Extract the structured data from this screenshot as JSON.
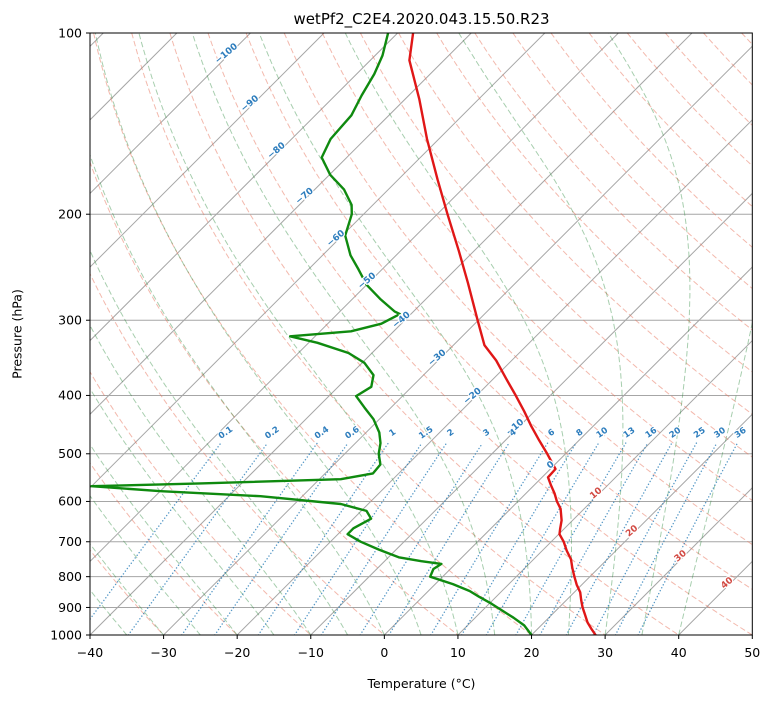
{
  "title": "wetPf2_C2E4.2020.043.15.50.R23",
  "axes": {
    "xlabel": "Temperature (°C)",
    "ylabel": "Pressure (hPa)",
    "x_ticks": [
      -40,
      -30,
      -20,
      -10,
      0,
      10,
      20,
      30,
      40,
      50
    ],
    "y_ticks": [
      100,
      200,
      300,
      400,
      500,
      600,
      700,
      800,
      900,
      1000
    ]
  },
  "colors": {
    "grid": "#a6a6a6",
    "frame": "#000000",
    "dry_adiabat": "#e8735b",
    "moist_adiabat": "#2e8b3d",
    "mixing_line": "#1f77b4",
    "isotherm_label_cold": "#2d7dbd",
    "isotherm_label_warm": "#d24a43",
    "mixing_label": "#2d7dbd",
    "temperature": "#e01717",
    "dewpoint": "#0f8a0f"
  },
  "chart_data": {
    "type": "line",
    "subtype": "skew-t-log-p",
    "title": "wetPf2_C2E4.2020.043.15.50.R23",
    "xlabel": "Temperature (°C)",
    "ylabel": "Pressure (hPa)",
    "x_range_c": [
      -40,
      50
    ],
    "pressure_range_hpa": [
      100,
      1000
    ],
    "y_scale": "log",
    "skew": "isotherms at 45 degrees",
    "x_ticks": [
      -40,
      -30,
      -20,
      -10,
      0,
      10,
      20,
      30,
      40,
      50
    ],
    "y_ticks": [
      100,
      200,
      300,
      400,
      500,
      600,
      700,
      800,
      900,
      1000
    ],
    "series": [
      {
        "name": "temperature",
        "color": "#e01717",
        "points_p_t": [
          [
            100,
            -77.9
          ],
          [
            111,
            -74.7
          ],
          [
            129,
            -68.0
          ],
          [
            150,
            -61.6
          ],
          [
            175,
            -54.7
          ],
          [
            200,
            -48.6
          ],
          [
            230,
            -42.1
          ],
          [
            260,
            -36.5
          ],
          [
            300,
            -30.1
          ],
          [
            330,
            -25.8
          ],
          [
            350,
            -22.1
          ],
          [
            375,
            -18.3
          ],
          [
            400,
            -14.7
          ],
          [
            425,
            -11.4
          ],
          [
            450,
            -8.4
          ],
          [
            475,
            -5.4
          ],
          [
            500,
            -2.5
          ],
          [
            511,
            -1.3
          ],
          [
            530,
            0.7
          ],
          [
            547,
            0.8
          ],
          [
            564,
            2.3
          ],
          [
            582,
            3.9
          ],
          [
            600,
            5.3
          ],
          [
            617,
            6.8
          ],
          [
            645,
            8.5
          ],
          [
            667,
            9.5
          ],
          [
            680,
            10.1
          ],
          [
            700,
            11.7
          ],
          [
            724,
            13.3
          ],
          [
            749,
            15.1
          ],
          [
            775,
            16.5
          ],
          [
            800,
            17.9
          ],
          [
            825,
            19.3
          ],
          [
            849,
            20.8
          ],
          [
            875,
            22.0
          ],
          [
            900,
            23.2
          ],
          [
            925,
            24.5
          ],
          [
            953,
            25.9
          ],
          [
            975,
            27.2
          ],
          [
            1000,
            28.7
          ]
        ]
      },
      {
        "name": "dewpoint",
        "color": "#0f8a0f",
        "points_p_t": [
          [
            100,
            -81.3
          ],
          [
            109,
            -79.0
          ],
          [
            117,
            -77.6
          ],
          [
            127,
            -76.4
          ],
          [
            137,
            -75.1
          ],
          [
            150,
            -74.7
          ],
          [
            161,
            -73.4
          ],
          [
            172,
            -69.9
          ],
          [
            182,
            -66.0
          ],
          [
            193,
            -62.9
          ],
          [
            200,
            -61.6
          ],
          [
            217,
            -59.6
          ],
          [
            234,
            -56.2
          ],
          [
            247,
            -53.2
          ],
          [
            262,
            -50.0
          ],
          [
            277,
            -46.1
          ],
          [
            290,
            -42.6
          ],
          [
            293,
            -41.5
          ],
          [
            304,
            -42.7
          ],
          [
            313,
            -45.8
          ],
          [
            319,
            -53.4
          ],
          [
            327,
            -48.8
          ],
          [
            340,
            -43.2
          ],
          [
            353,
            -39.7
          ],
          [
            370,
            -36.8
          ],
          [
            387,
            -35.5
          ],
          [
            401,
            -36.3
          ],
          [
            419,
            -33.6
          ],
          [
            438,
            -30.8
          ],
          [
            461,
            -28.2
          ],
          [
            480,
            -26.6
          ],
          [
            500,
            -25.4
          ],
          [
            521,
            -23.7
          ],
          [
            539,
            -23.5
          ],
          [
            551,
            -27.1
          ],
          [
            560,
            -45.6
          ],
          [
            566,
            -60.0
          ],
          [
            577,
            -49.9
          ],
          [
            588,
            -35.7
          ],
          [
            606,
            -23.7
          ],
          [
            622,
            -19.3
          ],
          [
            641,
            -17.6
          ],
          [
            665,
            -18.7
          ],
          [
            680,
            -18.7
          ],
          [
            700,
            -15.9
          ],
          [
            721,
            -12.4
          ],
          [
            743,
            -8.6
          ],
          [
            754,
            -5.0
          ],
          [
            762,
            -1.9
          ],
          [
            777,
            -2.3
          ],
          [
            800,
            -1.7
          ],
          [
            823,
            2.4
          ],
          [
            845,
            5.6
          ],
          [
            864,
            7.7
          ],
          [
            887,
            10.3
          ],
          [
            910,
            12.6
          ],
          [
            936,
            15.2
          ],
          [
            964,
            17.7
          ],
          [
            1000,
            20.0
          ]
        ]
      }
    ],
    "background": {
      "isotherms_c": {
        "start": -120,
        "end": 50,
        "step": 10
      },
      "dry_adiabats_c": {
        "start": -40,
        "end": 200,
        "step": 10
      },
      "moist_adiabats_c": {
        "start": -40,
        "end": 40,
        "step": 5
      },
      "mixing_ratio_g_kg": [
        0.1,
        0.2,
        0.4,
        0.6,
        1,
        1.5,
        2,
        3,
        4,
        6,
        8,
        10,
        13,
        16,
        20,
        25,
        30,
        36
      ],
      "mixing_line_bottom_hpa": 1000,
      "mixing_line_top_hpa": 480,
      "mixing_label_pressure_hpa": 465,
      "isotherm_labels": [
        {
          "t": -100,
          "p": 109
        },
        {
          "t": -90,
          "p": 132
        },
        {
          "t": -80,
          "p": 158
        },
        {
          "t": -70,
          "p": 188
        },
        {
          "t": -60,
          "p": 221
        },
        {
          "t": -50,
          "p": 260
        },
        {
          "t": -40,
          "p": 302
        },
        {
          "t": -30,
          "p": 349
        },
        {
          "t": -20,
          "p": 404
        },
        {
          "t": -10,
          "p": 455
        },
        {
          "t": 0,
          "p": 526
        },
        {
          "t": 10,
          "p": 586
        },
        {
          "t": 20,
          "p": 677
        },
        {
          "t": 30,
          "p": 745
        },
        {
          "t": 40,
          "p": 826
        }
      ]
    }
  }
}
